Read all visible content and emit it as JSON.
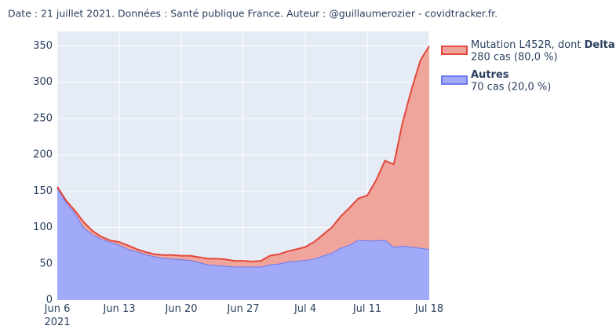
{
  "chart_data": {
    "type": "stacked_area",
    "title": "Date : 21 juillet 2021. Données : Santé publique France. Auteur : @guillaumerozier - covidtracker.fr.",
    "x": [
      "2021-06-06",
      "2021-06-07",
      "2021-06-08",
      "2021-06-09",
      "2021-06-10",
      "2021-06-11",
      "2021-06-12",
      "2021-06-13",
      "2021-06-14",
      "2021-06-15",
      "2021-06-16",
      "2021-06-17",
      "2021-06-18",
      "2021-06-19",
      "2021-06-20",
      "2021-06-21",
      "2021-06-22",
      "2021-06-23",
      "2021-06-24",
      "2021-06-25",
      "2021-06-26",
      "2021-06-27",
      "2021-06-28",
      "2021-06-29",
      "2021-06-30",
      "2021-07-01",
      "2021-07-02",
      "2021-07-03",
      "2021-07-04",
      "2021-07-05",
      "2021-07-06",
      "2021-07-07",
      "2021-07-08",
      "2021-07-09",
      "2021-07-10",
      "2021-07-11",
      "2021-07-12",
      "2021-07-13",
      "2021-07-14",
      "2021-07-15",
      "2021-07-16",
      "2021-07-17",
      "2021-07-18"
    ],
    "series": [
      {
        "name": "Autres",
        "detail": "70 cas (20,0 %)",
        "color": "#6d78f0",
        "fill": "#a1a9f9",
        "values": [
          155,
          135,
          120,
          100,
          90,
          84,
          80,
          76,
          70,
          67,
          63,
          60,
          58,
          57,
          56,
          55,
          52,
          49,
          48,
          47,
          46,
          46,
          46,
          46,
          49,
          50,
          53,
          54,
          55,
          57,
          61,
          65,
          72,
          76,
          83,
          82,
          82,
          83,
          73,
          75,
          73,
          72,
          70
        ]
      },
      {
        "name": "Mutation L452R, dont Delta",
        "detail": "280 cas (80,0 %)",
        "color": "#e2483c",
        "fill": "#f0a59c",
        "values": [
          1,
          2,
          3,
          7,
          5,
          3,
          2,
          4,
          5,
          3,
          3,
          3,
          4,
          5,
          5,
          6,
          7,
          8,
          9,
          9,
          8,
          8,
          7,
          8,
          12,
          13,
          14,
          16,
          18,
          23,
          29,
          35,
          43,
          51,
          57,
          62,
          83,
          109,
          114,
          170,
          217,
          258,
          280
        ]
      }
    ],
    "xlim": [
      "2021-06-06",
      "2021-07-18"
    ],
    "xticks": [
      {
        "value": "2021-06-06",
        "label": "Jun 6\n2021"
      },
      {
        "value": "2021-06-13",
        "label": "Jun 13"
      },
      {
        "value": "2021-06-20",
        "label": "Jun 20"
      },
      {
        "value": "2021-06-27",
        "label": "Jun 27"
      },
      {
        "value": "2021-07-04",
        "label": "Jul 4"
      },
      {
        "value": "2021-07-11",
        "label": "Jul 11"
      },
      {
        "value": "2021-07-18",
        "label": "Jul 18"
      }
    ],
    "ylim": [
      0,
      370
    ],
    "yticks": [
      0,
      50,
      100,
      150,
      200,
      250,
      300,
      350
    ],
    "grid": true
  }
}
